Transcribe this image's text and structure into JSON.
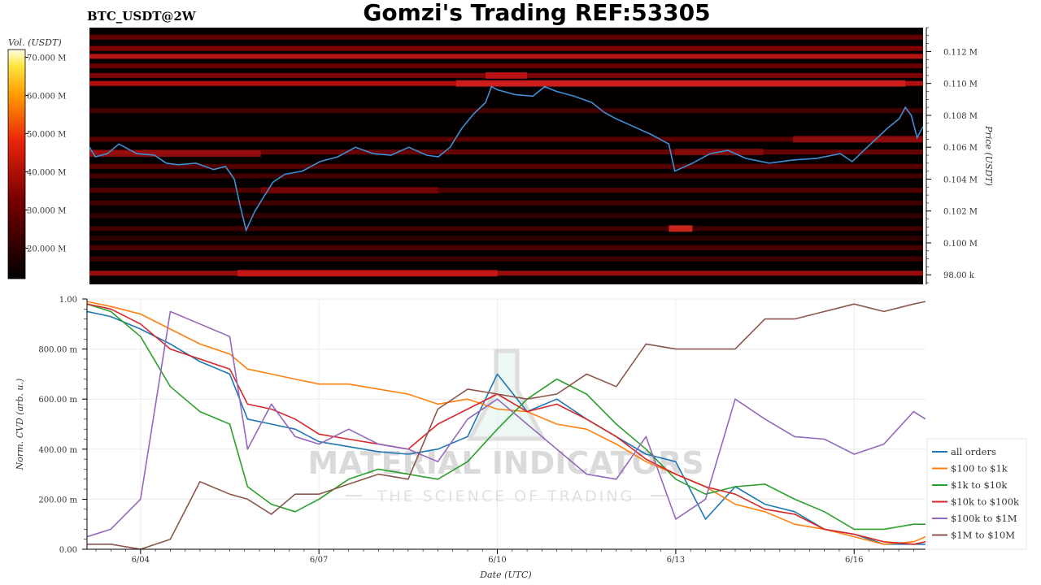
{
  "header": {
    "symbol": "BTC_USDT@2W",
    "title": "Gomzi's Trading REF:53305"
  },
  "colorbar": {
    "label": "Vol. (USDT)",
    "ticks": [
      "20.000 M",
      "30.000 M",
      "40.000 M",
      "50.000 M",
      "60.000 M",
      "70.000 M"
    ],
    "range": [
      12,
      72
    ]
  },
  "watermark": {
    "line1": "MATERIAL INDICATORS",
    "line2": "THE SCIENCE OF TRADING"
  },
  "colors": {
    "heatmap_bg": "#040000",
    "price_line": "#3f8fd2",
    "all_orders": "#1f77b4",
    "usd100_1k": "#ff7f0e",
    "usd1k_10k": "#2ca02c",
    "usd10k_100k": "#d62728",
    "usd100k_1m": "#9467bd",
    "usd1m_10m": "#8c564b"
  },
  "chart_data": [
    {
      "type": "heatmap",
      "title": "BTC_USDT@2W",
      "ylabel": "Price (USDT)",
      "ylim": [
        97400,
        113500
      ],
      "yticks": [
        98000,
        100000,
        102000,
        104000,
        106000,
        108000,
        110000,
        112000
      ],
      "ytick_labels": [
        "98.00 k",
        "0.100 M",
        "0.102 M",
        "0.104 M",
        "0.106 M",
        "0.108 M",
        "0.110 M",
        "0.112 M"
      ],
      "xlim": [
        3.1,
        17.2
      ],
      "price_series": {
        "name": "price",
        "x": [
          3.1,
          3.2,
          3.4,
          3.6,
          3.9,
          4.2,
          4.4,
          4.6,
          4.9,
          5.2,
          5.4,
          5.55,
          5.65,
          5.75,
          5.9,
          6.2,
          6.4,
          6.7,
          7.0,
          7.3,
          7.6,
          7.9,
          8.2,
          8.5,
          8.8,
          9.0,
          9.2,
          9.4,
          9.6,
          9.8,
          9.9,
          10.0,
          10.3,
          10.6,
          10.8,
          11.0,
          11.3,
          11.6,
          11.8,
          12.0,
          12.3,
          12.6,
          12.9,
          13.0,
          13.3,
          13.6,
          13.9,
          14.2,
          14.6,
          15.0,
          15.4,
          15.8,
          16.0,
          16.2,
          16.4,
          16.6,
          16.8,
          16.9,
          17.0,
          17.1,
          17.2
        ],
        "y": [
          106000,
          105400,
          105600,
          106200,
          105600,
          105500,
          105000,
          104900,
          105000,
          104600,
          104800,
          104000,
          102300,
          100800,
          102000,
          103800,
          104300,
          104500,
          105100,
          105400,
          106000,
          105600,
          105500,
          106000,
          105500,
          105400,
          106000,
          107200,
          108100,
          108800,
          109800,
          109600,
          109300,
          109200,
          109800,
          109500,
          109200,
          108800,
          108200,
          107800,
          107300,
          106800,
          106200,
          104500,
          105000,
          105600,
          105800,
          105300,
          105000,
          105200,
          105300,
          105600,
          105100,
          105800,
          106500,
          107200,
          107800,
          108500,
          108000,
          106600,
          107300
        ]
      }
    },
    {
      "type": "line",
      "xlabel": "Date (UTC)",
      "ylabel": "Norm. CVD (arb. u.)",
      "ylim": [
        0,
        1
      ],
      "xlim": [
        3.1,
        17.2
      ],
      "yticks": [
        0,
        0.2,
        0.4,
        0.6,
        0.8,
        1.0
      ],
      "ytick_labels": [
        "0.00",
        "200.00 m",
        "400.00 m",
        "600.00 m",
        "800.00 m",
        "1.00"
      ],
      "xticks": [
        4,
        7,
        10,
        13,
        16
      ],
      "xtick_labels": [
        "6/04",
        "6/07",
        "6/10",
        "6/13",
        "6/16"
      ],
      "legend_position": "bottom-right",
      "x": [
        3.1,
        3.5,
        4.0,
        4.5,
        5.0,
        5.5,
        5.8,
        6.2,
        6.6,
        7.0,
        7.5,
        8.0,
        8.5,
        9.0,
        9.5,
        10.0,
        10.5,
        11.0,
        11.5,
        12.0,
        12.5,
        13.0,
        13.5,
        14.0,
        14.5,
        15.0,
        15.5,
        16.0,
        16.5,
        17.0,
        17.2
      ],
      "series": [
        {
          "name": "all orders",
          "values": [
            0.95,
            0.93,
            0.88,
            0.82,
            0.75,
            0.7,
            0.52,
            0.5,
            0.48,
            0.43,
            0.41,
            0.39,
            0.38,
            0.4,
            0.45,
            0.7,
            0.55,
            0.6,
            0.52,
            0.45,
            0.38,
            0.35,
            0.12,
            0.25,
            0.18,
            0.15,
            0.08,
            0.06,
            0.02,
            0.02,
            0.02
          ]
        },
        {
          "name": "$100 to $1k",
          "values": [
            0.99,
            0.97,
            0.94,
            0.88,
            0.82,
            0.78,
            0.72,
            0.7,
            0.68,
            0.66,
            0.66,
            0.64,
            0.62,
            0.58,
            0.6,
            0.56,
            0.55,
            0.5,
            0.48,
            0.42,
            0.35,
            0.3,
            0.25,
            0.18,
            0.15,
            0.1,
            0.08,
            0.05,
            0.02,
            0.03,
            0.05
          ]
        },
        {
          "name": "$1k to $10k",
          "values": [
            0.98,
            0.95,
            0.85,
            0.65,
            0.55,
            0.5,
            0.25,
            0.18,
            0.15,
            0.2,
            0.28,
            0.32,
            0.3,
            0.28,
            0.35,
            0.48,
            0.6,
            0.68,
            0.62,
            0.5,
            0.4,
            0.28,
            0.22,
            0.25,
            0.26,
            0.2,
            0.15,
            0.08,
            0.08,
            0.1,
            0.1
          ]
        },
        {
          "name": "$10k to $100k",
          "values": [
            0.98,
            0.96,
            0.9,
            0.8,
            0.76,
            0.72,
            0.58,
            0.56,
            0.52,
            0.46,
            0.44,
            0.42,
            0.4,
            0.5,
            0.56,
            0.62,
            0.55,
            0.58,
            0.52,
            0.45,
            0.36,
            0.3,
            0.25,
            0.22,
            0.16,
            0.14,
            0.08,
            0.06,
            0.03,
            0.02,
            0.03
          ]
        },
        {
          "name": "$100k to $1M",
          "values": [
            0.05,
            0.08,
            0.2,
            0.95,
            0.9,
            0.85,
            0.4,
            0.58,
            0.45,
            0.42,
            0.48,
            0.42,
            0.4,
            0.35,
            0.52,
            0.6,
            0.5,
            0.4,
            0.3,
            0.28,
            0.45,
            0.12,
            0.2,
            0.6,
            0.52,
            0.45,
            0.44,
            0.38,
            0.42,
            0.55,
            0.52
          ]
        },
        {
          "name": "$1M to $10M",
          "values": [
            0.02,
            0.02,
            0.0,
            0.04,
            0.27,
            0.22,
            0.2,
            0.14,
            0.22,
            0.22,
            0.26,
            0.3,
            0.28,
            0.56,
            0.64,
            0.62,
            0.6,
            0.62,
            0.7,
            0.65,
            0.82,
            0.8,
            0.8,
            0.8,
            0.92,
            0.92,
            0.95,
            0.98,
            0.95,
            0.98,
            0.99
          ]
        }
      ]
    }
  ]
}
